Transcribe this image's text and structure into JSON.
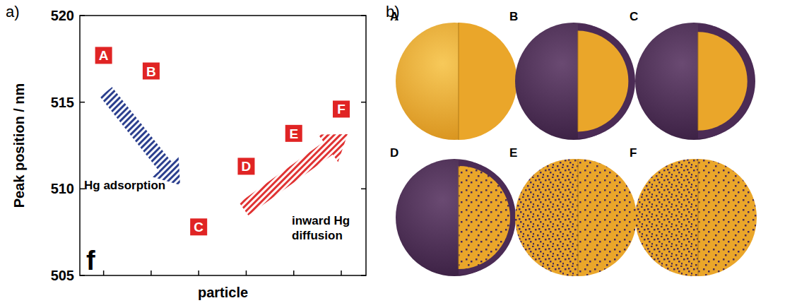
{
  "chart_data": {
    "type": "scatter",
    "y_label": "Peak position / nm",
    "x_label": "particle",
    "categories": [
      "A",
      "B",
      "C",
      "D",
      "E",
      "F"
    ],
    "values": [
      517.7,
      516.8,
      507.8,
      511.3,
      513.2,
      514.6
    ],
    "color": "#e02424",
    "marker": "square",
    "ylim": [
      505,
      520
    ],
    "yticks": [
      505,
      510,
      515,
      520
    ],
    "tick_labels": "y",
    "annotations": [
      "Hg adsorption",
      "inward Hg diffusion",
      "f"
    ]
  },
  "panel_labels": [
    "a)",
    "b)"
  ],
  "diagram": {
    "labels": [
      "A",
      "B",
      "C",
      "D",
      "E",
      "F"
    ]
  }
}
